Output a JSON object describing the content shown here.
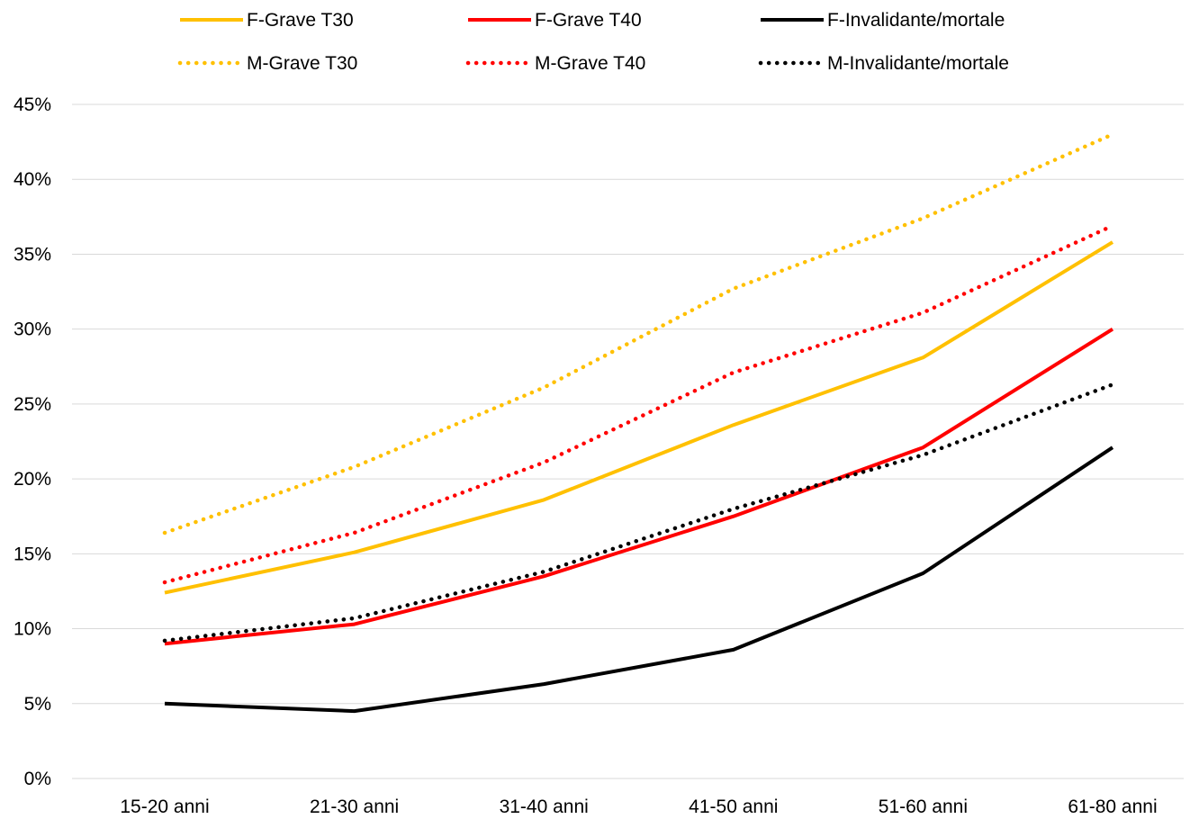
{
  "chart_data": {
    "type": "line",
    "title": "",
    "xlabel": "",
    "ylabel": "",
    "categories": [
      "15-20 anni",
      "21-30  anni",
      "31-40 anni",
      "41-50 anni",
      "51-60 anni",
      "61-80 anni"
    ],
    "ylim": [
      0,
      45
    ],
    "yticks": [
      0,
      5,
      10,
      15,
      20,
      25,
      30,
      35,
      40,
      45
    ],
    "ytick_labels": [
      "0%",
      "5%",
      "10%",
      "15%",
      "20%",
      "25%",
      "30%",
      "35%",
      "40%",
      "45%"
    ],
    "grid": true,
    "legend_position": "top",
    "series": [
      {
        "name": "F-Grave T30",
        "color": "#ffc000",
        "style": "solid",
        "values": [
          12.4,
          15.1,
          18.6,
          23.6,
          28.1,
          35.8
        ]
      },
      {
        "name": "F-Grave T40",
        "color": "#ff0000",
        "style": "solid",
        "values": [
          9.0,
          10.3,
          13.5,
          17.5,
          22.1,
          30.0
        ]
      },
      {
        "name": "F-Invalidante/mortale",
        "color": "#000000",
        "style": "solid",
        "values": [
          5.0,
          4.5,
          6.3,
          8.6,
          13.7,
          22.1
        ]
      },
      {
        "name": "M-Grave T30",
        "color": "#ffc000",
        "style": "dotted",
        "values": [
          16.4,
          20.8,
          26.1,
          32.7,
          37.4,
          43.0
        ]
      },
      {
        "name": "M-Grave T40",
        "color": "#ff0000",
        "style": "dotted",
        "values": [
          13.1,
          16.4,
          21.1,
          27.1,
          31.1,
          36.9
        ]
      },
      {
        "name": "M-Invalidante/mortale",
        "color": "#000000",
        "style": "dotted",
        "values": [
          9.2,
          10.7,
          13.8,
          18.0,
          21.6,
          26.3
        ]
      }
    ]
  }
}
